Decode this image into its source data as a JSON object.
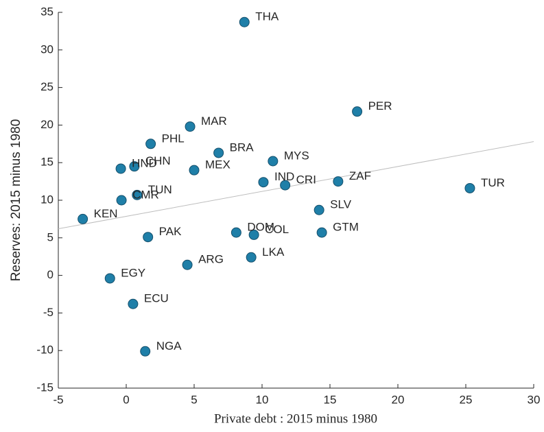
{
  "chart_data": {
    "type": "scatter",
    "xlabel": "Private debt : 2015 minus 1980",
    "ylabel": "Reserves: 2015 minus 1980",
    "labels": [
      "THA",
      "PER",
      "MAR",
      "PHL",
      "BRA",
      "MYS",
      "CHN",
      "HND",
      "MEX",
      "IND",
      "CRI",
      "ZAF",
      "TUR",
      "TUN",
      "CMR",
      "KEN",
      "SLV",
      "PAK",
      "DOM",
      "COL",
      "GTM",
      "LKA",
      "ARG",
      "EGY",
      "ECU",
      "NGA"
    ],
    "x": [
      8.7,
      17.0,
      4.7,
      1.8,
      6.8,
      10.8,
      0.6,
      -0.4,
      5.0,
      10.1,
      11.7,
      15.6,
      25.3,
      0.8,
      -0.35,
      -3.2,
      14.2,
      1.6,
      8.1,
      9.4,
      14.4,
      9.2,
      4.5,
      -1.2,
      0.5,
      1.4
    ],
    "y": [
      33.7,
      21.8,
      19.8,
      17.5,
      16.3,
      15.2,
      14.5,
      14.2,
      14.0,
      12.4,
      12.0,
      12.5,
      11.6,
      10.7,
      10.0,
      7.5,
      8.7,
      5.1,
      5.7,
      5.4,
      5.7,
      2.4,
      1.4,
      -0.4,
      -3.8,
      -10.1
    ],
    "color": "#1f7fa8",
    "trendline": {
      "x": [
        -5,
        30
      ],
      "y": [
        6.2,
        17.8
      ],
      "color": "#bdbdbd"
    },
    "xlim": [
      -5,
      30
    ],
    "xticks": [
      -5,
      0,
      5,
      10,
      15,
      20,
      25,
      30
    ],
    "ylim": [
      -15,
      35
    ],
    "yticks": [
      -15,
      -10,
      -5,
      0,
      5,
      10,
      15,
      20,
      25,
      30,
      35
    ]
  }
}
